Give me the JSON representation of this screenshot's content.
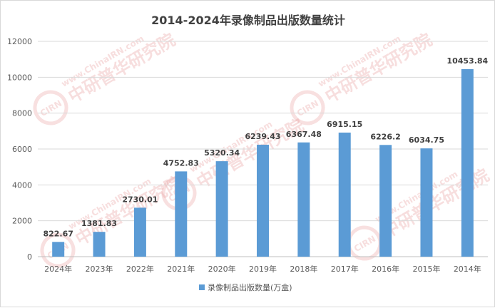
{
  "watermark": {
    "en": "www.ChinaIRN.com",
    "cn": "中研普华研究院",
    "logo": "CIRN",
    "color": "#e07070"
  },
  "chart_data": {
    "type": "bar",
    "title": "2014-2024年录像制品出版数量统计",
    "categories": [
      "2024年",
      "2023年",
      "2022年",
      "2021年",
      "2020年",
      "2019年",
      "2018年",
      "2017年",
      "2016年",
      "2015年",
      "2014年"
    ],
    "series": [
      {
        "name": "录像制品出版数量(万盒)",
        "values": [
          822.67,
          1381.83,
          2730.01,
          4752.83,
          5320.34,
          6239.43,
          6367.48,
          6915.15,
          6226.2,
          6034.75,
          10453.84
        ],
        "labels": [
          "822.67",
          "1381.83",
          "2730.01",
          "4752.83",
          "5320.34",
          "6239.43",
          "6367.48",
          "6915.15",
          "6226.2",
          "6034.75",
          "10453.84"
        ],
        "color": "#5b9bd5"
      }
    ],
    "ylim": [
      0,
      12000
    ],
    "yticks": [
      "0",
      "2000",
      "4000",
      "6000",
      "8000",
      "10000",
      "12000"
    ],
    "grid": true,
    "legend_position": "bottom"
  }
}
